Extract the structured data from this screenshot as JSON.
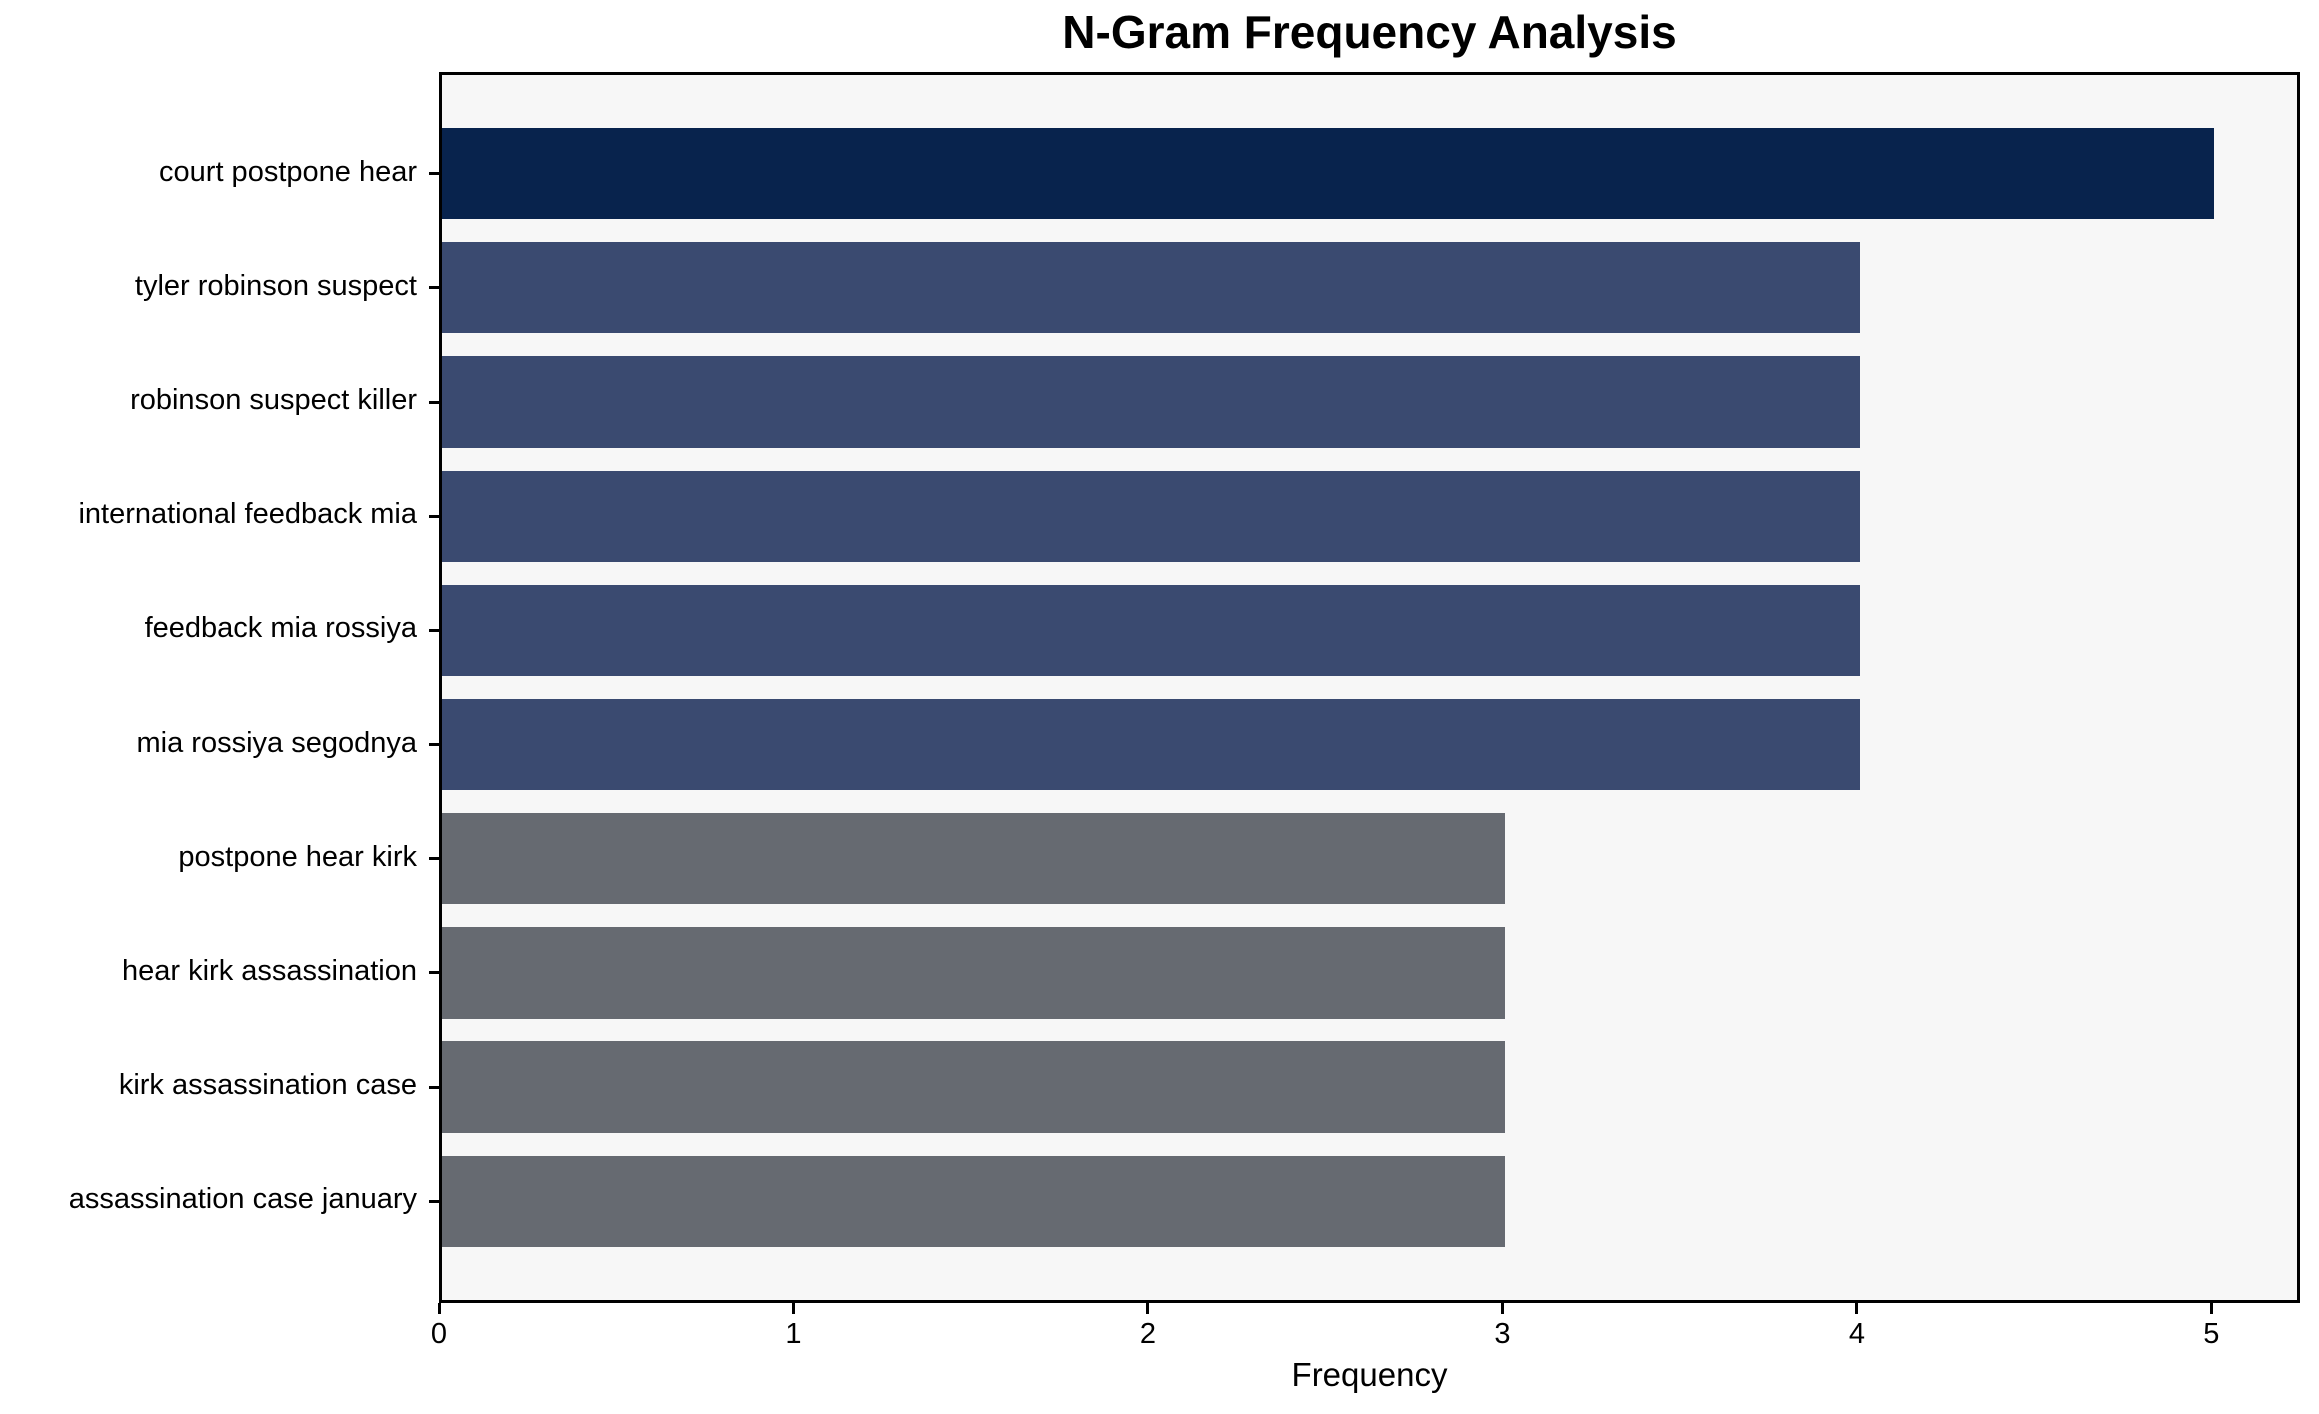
{
  "chart_data": {
    "type": "bar",
    "orientation": "horizontal",
    "title": "N-Gram Frequency Analysis",
    "xlabel": "Frequency",
    "ylabel": "",
    "categories": [
      "court postpone hear",
      "tyler robinson suspect",
      "robinson suspect killer",
      "international feedback mia",
      "feedback mia rossiya",
      "mia rossiya segodnya",
      "postpone hear kirk",
      "hear kirk assassination",
      "kirk assassination case",
      "assassination case january"
    ],
    "values": [
      5,
      4,
      4,
      4,
      4,
      4,
      3,
      3,
      3,
      3
    ],
    "bar_colors": [
      "#08234d",
      "#3a4a70",
      "#3a4a70",
      "#3a4a70",
      "#3a4a70",
      "#3a4a70",
      "#666a71",
      "#666a71",
      "#666a71",
      "#666a71"
    ],
    "xlim": [
      0,
      5.25
    ],
    "xticks": [
      0,
      1,
      2,
      3,
      4,
      5
    ],
    "grid": false,
    "legend": null,
    "plot_background": "#f7f7f7",
    "figure_background": "#ffffff"
  }
}
